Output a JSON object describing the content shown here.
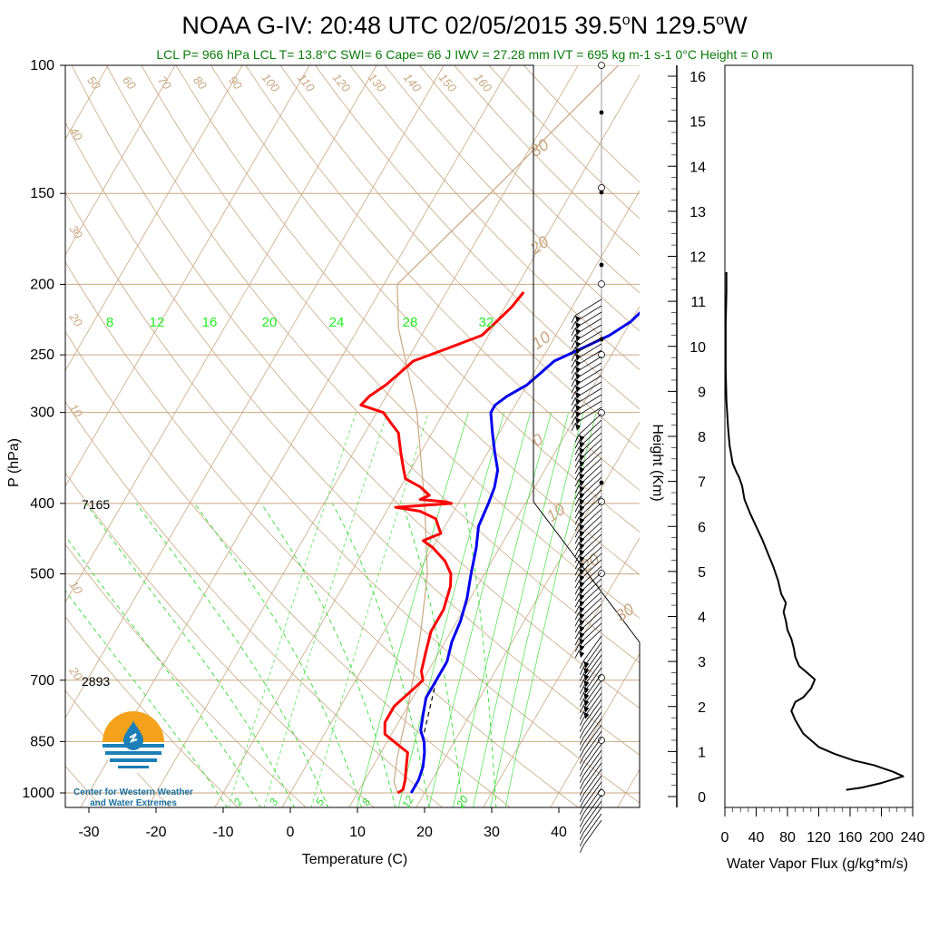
{
  "title": "NOAA G-IV: 20:48 UTC 02/05/2015  39.5°N 129.5°W",
  "title_parts": {
    "main": "NOAA G-IV: 20:48 UTC 02/05/2015  39.5",
    "deg1": "o",
    "n": "N 129.5",
    "deg2": "o",
    "w": "W"
  },
  "subtitle": "LCL P= 966 hPa  LCL T= 13.8°C  SWI= 6  Cape= 66 J  IWV = 27.28 mm  IVT = 695 kg m-1 s-1  0°C Height = 0 m",
  "logo": {
    "line1": "Center for Western Weather",
    "line2": "and Water Extremes",
    "colors": {
      "orange": "#f4a21b",
      "blue": "#1b7fb8"
    }
  },
  "colors": {
    "temperature": "#ff0000",
    "dewpoint": "#0000ee",
    "dry_adiabat": "#c9a882",
    "isobar": "#c9a882",
    "mixing_ratio": "#33dd33",
    "flux": "#000000"
  },
  "chart_data": [
    {
      "type": "line",
      "subtype": "skew-t",
      "xlabel": "Temperature (C)",
      "ylabel": "P (hPa)",
      "xticks": [
        "-30",
        "-20",
        "-10",
        "0",
        "10",
        "20",
        "30",
        "40"
      ],
      "yticks": [
        "100",
        "150",
        "200",
        "250",
        "300",
        "400",
        "500",
        "700",
        "850",
        "1000"
      ],
      "xlim": [
        -35,
        50
      ],
      "ylim": [
        1050,
        100
      ],
      "height_annotations": [
        {
          "p": 400,
          "label": "7165"
        },
        {
          "p": 700,
          "label": "2893"
        }
      ],
      "mixing_ratio_labels_top": [
        "8",
        "12",
        "16",
        "20",
        "24",
        "28",
        "32"
      ],
      "mixing_ratio_labels_bottom": [
        "2",
        "3",
        "5",
        "8",
        "12",
        "20"
      ],
      "theta_labels": [
        "50",
        "60",
        "70",
        "80",
        "90",
        "100",
        "110",
        "120",
        "130",
        "140",
        "150",
        "160"
      ],
      "left_theta_labels": [
        "40",
        "30",
        "20",
        "10",
        "0",
        "10",
        "20"
      ],
      "right_theta_labels": [
        "30",
        "20",
        "10",
        "0",
        "10",
        "20",
        "30"
      ],
      "series": [
        {
          "name": "Temperature",
          "points": [
            [
              205,
              -8.5
            ],
            [
              215,
              -9
            ],
            [
              225,
              -10
            ],
            [
              235,
              -11
            ],
            [
              245,
              -15
            ],
            [
              255,
              -19
            ],
            [
              265,
              -20
            ],
            [
              275,
              -21
            ],
            [
              285,
              -22.5
            ],
            [
              293,
              -23
            ],
            [
              300,
              -19
            ],
            [
              310,
              -17
            ],
            [
              320,
              -15
            ],
            [
              330,
              -14
            ],
            [
              340,
              -13
            ],
            [
              350,
              -12
            ],
            [
              360,
              -11
            ],
            [
              370,
              -10
            ],
            [
              380,
              -7
            ],
            [
              390,
              -5
            ],
            [
              395,
              -6
            ],
            [
              398,
              -2
            ],
            [
              400,
              -1
            ],
            [
              405,
              -9
            ],
            [
              410,
              -5
            ],
            [
              420,
              -2
            ],
            [
              430,
              -1
            ],
            [
              440,
              0
            ],
            [
              450,
              -2
            ],
            [
              460,
              0
            ],
            [
              480,
              3
            ],
            [
              500,
              5
            ],
            [
              520,
              6
            ],
            [
              560,
              7
            ],
            [
              600,
              7
            ],
            [
              640,
              8
            ],
            [
              680,
              9
            ],
            [
              700,
              10
            ],
            [
              730,
              9
            ],
            [
              760,
              8
            ],
            [
              800,
              8
            ],
            [
              830,
              9
            ],
            [
              860,
              12
            ],
            [
              880,
              14
            ],
            [
              920,
              15
            ],
            [
              960,
              16
            ],
            [
              990,
              16.5
            ],
            [
              1000,
              16
            ]
          ]
        },
        {
          "name": "Dewpoint",
          "points": [
            [
              205,
              11.5
            ],
            [
              215,
              11
            ],
            [
              225,
              10
            ],
            [
              235,
              8
            ],
            [
              245,
              5
            ],
            [
              255,
              2
            ],
            [
              265,
              1
            ],
            [
              275,
              0
            ],
            [
              285,
              -2
            ],
            [
              293,
              -3
            ],
            [
              300,
              -3
            ],
            [
              320,
              -1
            ],
            [
              340,
              1
            ],
            [
              360,
              3
            ],
            [
              380,
              4
            ],
            [
              400,
              4.5
            ],
            [
              430,
              5
            ],
            [
              460,
              6.5
            ],
            [
              500,
              8
            ],
            [
              540,
              9.5
            ],
            [
              580,
              10.5
            ],
            [
              620,
              11
            ],
            [
              660,
              12
            ],
            [
              700,
              12
            ],
            [
              740,
              12
            ],
            [
              780,
              13
            ],
            [
              820,
              14
            ],
            [
              850,
              15.5
            ],
            [
              880,
              16.5
            ],
            [
              920,
              17.5
            ],
            [
              960,
              18
            ],
            [
              1000,
              18
            ]
          ]
        },
        {
          "name": "Parcel",
          "points": [
            [
              1000,
              16
            ],
            [
              966,
              14.5
            ],
            [
              900,
              13
            ],
            [
              850,
              12
            ],
            [
              800,
              11
            ],
            [
              700,
              8.5
            ],
            [
              600,
              5.5
            ],
            [
              500,
              1.5
            ],
            [
              400,
              -5
            ],
            [
              300,
              -14
            ],
            [
              230,
              -24
            ],
            [
              200,
              -28
            ],
            [
              150,
              -22
            ],
            [
              100,
              -14
            ]
          ]
        }
      ]
    },
    {
      "type": "line",
      "subtype": "wind-barbs",
      "note_hidden": ""
    },
    {
      "type": "line",
      "name": "Water Vapor Flux",
      "xlabel": "Water Vapor Flux (g/kg*m/s)",
      "ylabel": "Height (Km)",
      "xticks": [
        "0",
        "40",
        "80",
        "120",
        "160",
        "200",
        "240"
      ],
      "yticks": [
        "0",
        "1",
        "2",
        "3",
        "4",
        "5",
        "6",
        "7",
        "8",
        "9",
        "10",
        "11",
        "12",
        "13",
        "14",
        "15",
        "16"
      ],
      "xlim": [
        0,
        240
      ],
      "ylim": [
        0,
        16.3
      ],
      "series": [
        {
          "name": "Water Vapor Flux",
          "points": [
            [
              155,
              0.15
            ],
            [
              175,
              0.2
            ],
            [
              200,
              0.3
            ],
            [
              228,
              0.45
            ],
            [
              215,
              0.55
            ],
            [
              190,
              0.7
            ],
            [
              165,
              0.8
            ],
            [
              140,
              0.95
            ],
            [
              120,
              1.1
            ],
            [
              100,
              1.4
            ],
            [
              90,
              1.7
            ],
            [
              85,
              1.9
            ],
            [
              90,
              2.1
            ],
            [
              100,
              2.2
            ],
            [
              110,
              2.4
            ],
            [
              115,
              2.6
            ],
            [
              105,
              2.75
            ],
            [
              95,
              2.9
            ],
            [
              90,
              3.1
            ],
            [
              88,
              3.3
            ],
            [
              85,
              3.5
            ],
            [
              80,
              3.7
            ],
            [
              78,
              3.9
            ],
            [
              75,
              4.1
            ],
            [
              78,
              4.3
            ],
            [
              72,
              4.5
            ],
            [
              68,
              4.8
            ],
            [
              62,
              5.1
            ],
            [
              55,
              5.4
            ],
            [
              48,
              5.7
            ],
            [
              40,
              6.0
            ],
            [
              32,
              6.3
            ],
            [
              25,
              6.6
            ],
            [
              22,
              6.9
            ],
            [
              18,
              7.1
            ],
            [
              15,
              7.2
            ],
            [
              10,
              7.4
            ],
            [
              6,
              7.8
            ],
            [
              4,
              8.2
            ],
            [
              2,
              8.8
            ],
            [
              1,
              9.5
            ],
            [
              1,
              10.5
            ],
            [
              2,
              11.2
            ],
            [
              2,
              11.65
            ]
          ]
        }
      ]
    }
  ]
}
